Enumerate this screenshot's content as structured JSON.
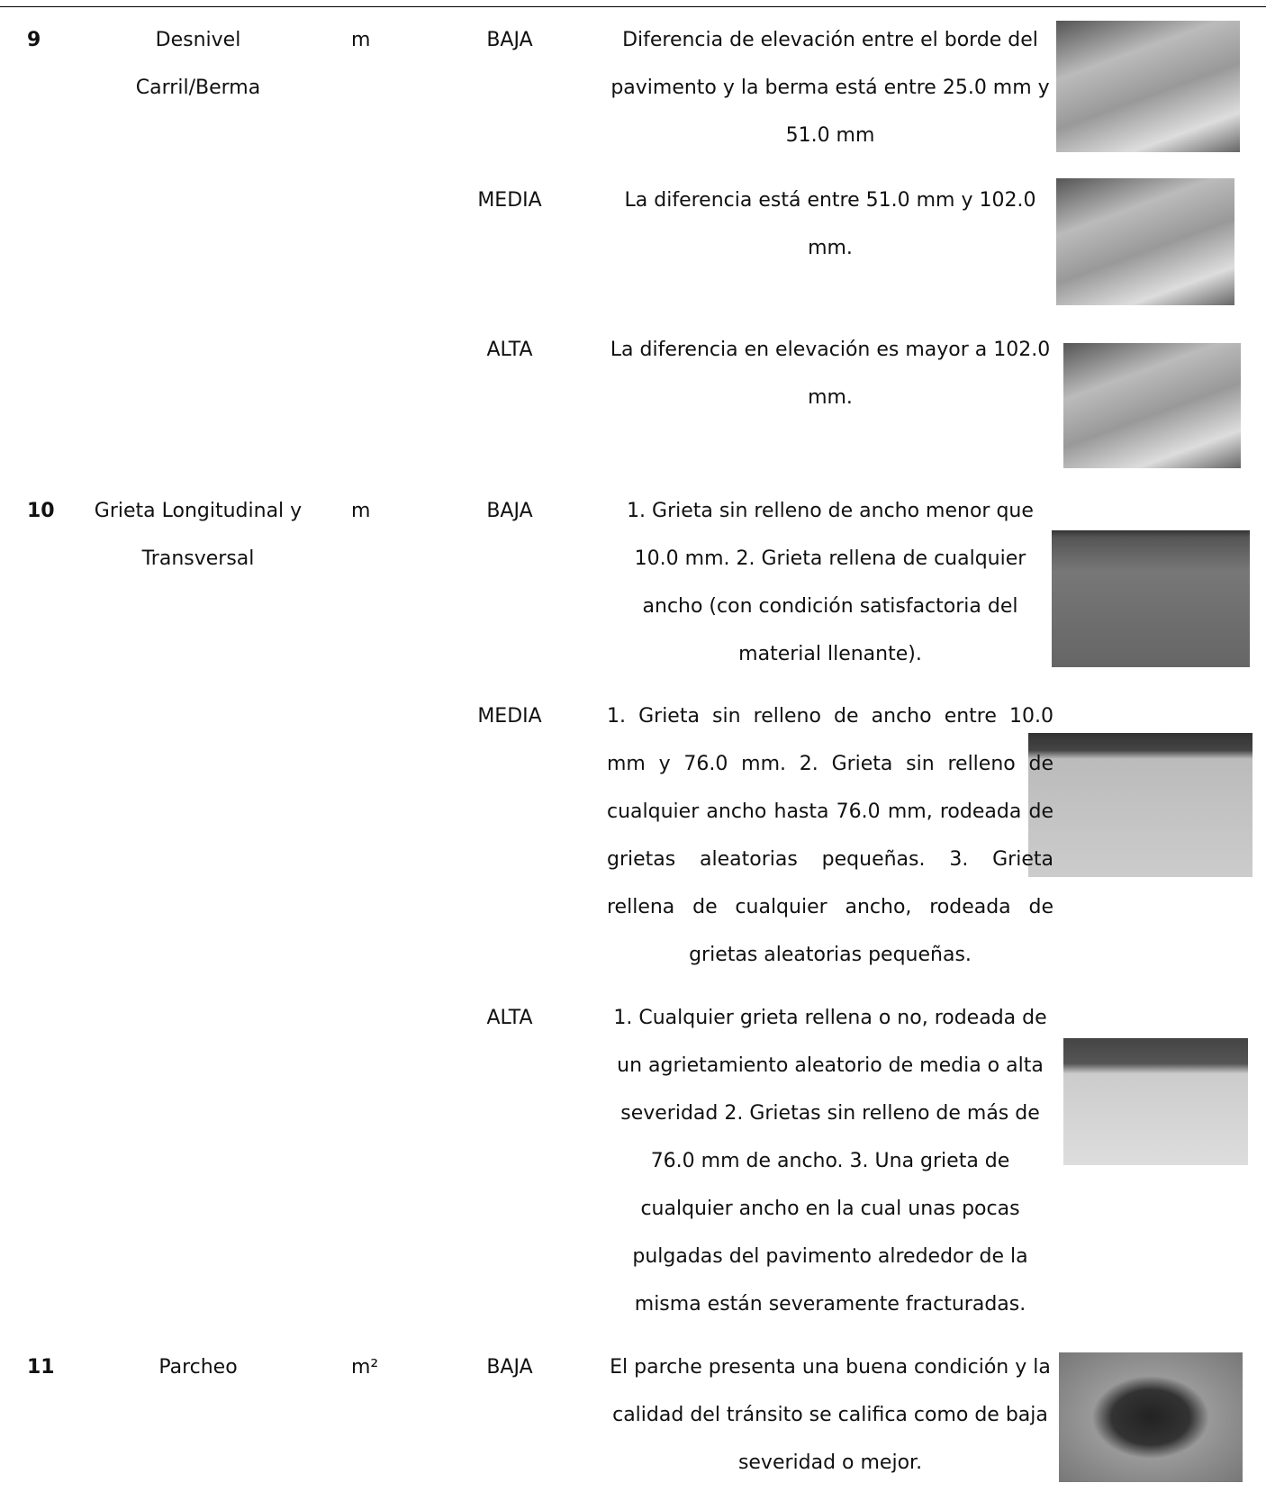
{
  "table": {
    "rows": [
      {
        "number": "9",
        "name": "Desnivel Carril/Berma",
        "unit": "m",
        "levels": [
          {
            "severity": "BAJA",
            "description": "Diferencia de elevación entre el borde del pavimento y la berma está entre 25.0 mm y 51.0 mm"
          },
          {
            "severity": "MEDIA",
            "description": "La diferencia está entre 51.0 mm y 102.0 mm."
          },
          {
            "severity": "ALTA",
            "description": "La diferencia en elevación es mayor a 102.0 mm."
          }
        ]
      },
      {
        "number": "10",
        "name": "Grieta Longitudinal y Transversal",
        "unit": "m",
        "levels": [
          {
            "severity": "BAJA",
            "description": "1. Grieta sin relleno de ancho menor que 10.0 mm. 2. Grieta rellena de cualquier ancho (con condición satisfactoria del material llenante)."
          },
          {
            "severity": "MEDIA",
            "description": "1. Grieta sin relleno de ancho entre 10.0 mm y 76.0 mm. 2. Grieta sin relleno de cualquier ancho hasta 76.0 mm, rodeada de grietas aleatorias pequeñas. 3. Grieta rellena de cualquier ancho, rodeada de grietas aleatorias pequeñas."
          },
          {
            "severity": "ALTA",
            "description": "1. Cualquier grieta rellena o no, rodeada de un agrietamiento aleatorio de media o alta severidad 2. Grietas sin relleno de más de 76.0 mm de ancho. 3. Una grieta de cualquier ancho en la cual unas pocas pulgadas del pavimento alrededor de la misma están severamente fracturadas."
          }
        ]
      },
      {
        "number": "11",
        "name": "Parcheo",
        "unit": "m²",
        "levels": [
          {
            "severity": "BAJA",
            "description": "El parche presenta una buena condición y la calidad del tránsito se califica como de baja severidad o mejor."
          }
        ]
      }
    ]
  }
}
